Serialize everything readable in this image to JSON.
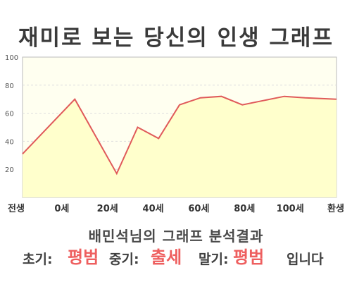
{
  "title": "재미로 보는 당신의 인생 그래프",
  "chart_data": {
    "type": "area",
    "ylim": [
      0,
      100
    ],
    "yticks": [
      "100",
      "80",
      "60",
      "40",
      "20"
    ],
    "categories": [
      "전생",
      "0세",
      "20세",
      "40세",
      "60세",
      "80세",
      "100세",
      "환생"
    ],
    "x": [
      -25,
      0,
      20,
      30,
      40,
      50,
      60,
      70,
      80,
      90,
      100,
      110,
      120
    ],
    "values": [
      31,
      70,
      17,
      50,
      42,
      66,
      71,
      72,
      66,
      69,
      72,
      71,
      70
    ],
    "colors": {
      "line": "#e05a5a",
      "fill": "#ffffcc",
      "grid": "#dddddd"
    }
  },
  "subtitle": "배민석님의 그래프 분석결과",
  "result": {
    "early_label": "초기:",
    "early_value": "평범",
    "middle_label": "중기:",
    "middle_value": "출세",
    "late_label": "말기:",
    "late_value": "평범",
    "ending": "입니다"
  }
}
